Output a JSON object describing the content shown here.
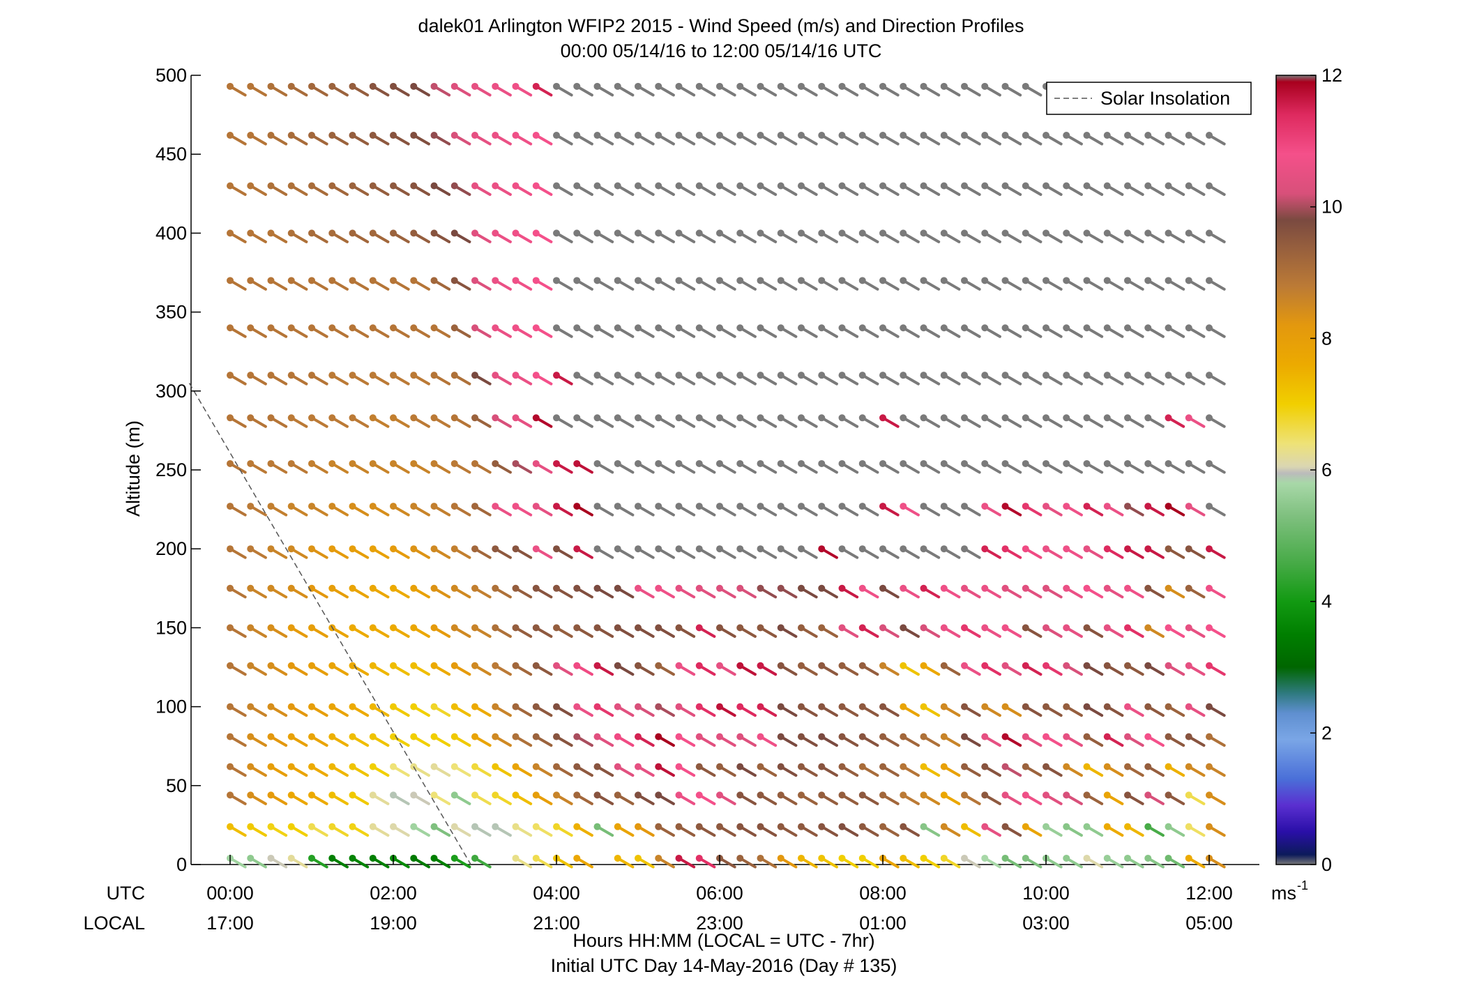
{
  "chart_data": {
    "type": "wind_barb_profile",
    "title": "dalek01 Arlington WFIP2 2015 - Wind Speed (m/s) and Direction Profiles",
    "subtitle": "00:00 05/14/16 to 12:00 05/14/16  UTC",
    "ylabel": "Altitude (m)",
    "xlabel": "Hours HH:MM  (LOCAL = UTC - 7hr)",
    "footer": "Initial UTC Day 14-May-2016 (Day # 135)",
    "utc_label": "UTC",
    "local_label": "LOCAL",
    "xlim_hours": [
      0,
      12
    ],
    "ylim": [
      0,
      500
    ],
    "yticks": [
      0,
      50,
      100,
      150,
      200,
      250,
      300,
      350,
      400,
      450,
      500
    ],
    "xticks_hours": [
      0,
      2,
      4,
      6,
      8,
      10,
      12
    ],
    "xtick_labels_utc": [
      "00:00",
      "02:00",
      "04:00",
      "06:00",
      "08:00",
      "10:00",
      "12:00"
    ],
    "xtick_labels_local": [
      "17:00",
      "19:00",
      "21:00",
      "23:00",
      "01:00",
      "03:00",
      "05:00"
    ],
    "legend": {
      "entries": [
        "Solar Insolation"
      ],
      "location": "top-right"
    },
    "solar_insolation": {
      "x_hours": [
        -0.5,
        2.95
      ],
      "y": [
        305,
        0
      ],
      "style": "dashed",
      "color": "#555555"
    },
    "colorbar": {
      "min": 0,
      "max": 12,
      "ticks": [
        0,
        2,
        4,
        6,
        8,
        10,
        12
      ],
      "unit": "ms",
      "unit_exponent": "-1",
      "stops": [
        [
          0.0,
          "#777777"
        ],
        [
          0.15,
          "#0c1a5a"
        ],
        [
          0.5,
          "#2a0fa8"
        ],
        [
          0.9,
          "#5a2fd0"
        ],
        [
          1.3,
          "#4a6fd8"
        ],
        [
          1.9,
          "#7aa6e6"
        ],
        [
          2.3,
          "#5f8fd0"
        ],
        [
          2.6,
          "#2f7a80"
        ],
        [
          3.0,
          "#006600"
        ],
        [
          3.5,
          "#007f00"
        ],
        [
          4.0,
          "#129a12"
        ],
        [
          4.6,
          "#48ab48"
        ],
        [
          5.3,
          "#7fc07f"
        ],
        [
          5.8,
          "#a8d8a8"
        ],
        [
          5.95,
          "#bbbbbb"
        ],
        [
          6.05,
          "#dad6b2"
        ],
        [
          6.4,
          "#eee277"
        ],
        [
          7.0,
          "#f1cf00"
        ],
        [
          7.6,
          "#ecaa00"
        ],
        [
          8.2,
          "#e3980e"
        ],
        [
          8.8,
          "#bb7a36"
        ],
        [
          9.4,
          "#955e3e"
        ],
        [
          9.8,
          "#7a4a40"
        ],
        [
          10.2,
          "#d8507a"
        ],
        [
          10.8,
          "#f4508a"
        ],
        [
          11.4,
          "#de2a5f"
        ],
        [
          11.9,
          "#a8001e"
        ],
        [
          12.0,
          "#7a7a7a"
        ]
      ]
    },
    "times_hours": [
      0.0,
      0.25,
      0.5,
      0.75,
      1.0,
      1.25,
      1.5,
      1.75,
      2.0,
      2.25,
      2.5,
      2.75,
      3.0,
      3.25,
      3.5,
      3.75,
      4.0,
      4.25,
      4.5,
      4.75,
      5.0,
      5.25,
      5.5,
      5.75,
      6.0,
      6.25,
      6.5,
      6.75,
      7.0,
      7.25,
      7.5,
      7.75,
      8.0,
      8.25,
      8.5,
      8.75,
      9.0,
      9.25,
      9.5,
      9.75,
      10.0,
      10.25,
      10.5,
      10.75,
      11.0,
      11.25,
      11.5,
      11.75,
      12.0
    ],
    "altitudes_m": [
      4,
      24,
      44,
      62,
      81,
      100,
      126,
      150,
      175,
      200,
      227,
      254,
      283,
      310,
      340,
      370,
      400,
      430,
      462,
      493
    ],
    "direction_deg": 240,
    "missing_value": null,
    "speed_rows_ms": [
      [
        5.7,
        5.5,
        6.0,
        6.2,
        4.2,
        3.5,
        3.6,
        3.5,
        3.7,
        3.4,
        3.5,
        4.1,
        4.5,
        null,
        6.3,
        6.6,
        7.2,
        7.7,
        null,
        7.4,
        7.2,
        8.6,
        11.6,
        11.3,
        9.5,
        9.3,
        9.0,
        8.2,
        7.4,
        7.2,
        7.0,
        7.0,
        7.8,
        7.3,
        7.0,
        6.8,
        6.0,
        5.8,
        5.2,
        5.3,
        5.5,
        5.5,
        6.1,
        5.6,
        5.5,
        5.4,
        5.1,
        7.6,
        8.4
      ],
      [
        7.3,
        7.1,
        6.9,
        7.0,
        6.6,
        6.8,
        6.9,
        6.2,
        6.1,
        5.7,
        5.3,
        6.1,
        5.9,
        5.9,
        6.3,
        6.5,
        6.8,
        7.5,
        5.2,
        7.8,
        8.2,
        9.3,
        9.4,
        9.5,
        9.5,
        9.6,
        9.6,
        9.5,
        9.5,
        9.6,
        9.7,
        9.5,
        9.3,
        9.6,
        5.4,
        8.5,
        7.3,
        10.5,
        9.6,
        7.8,
        5.6,
        5.4,
        5.5,
        7.6,
        7.4,
        4.6,
        5.5,
        6.5,
        8.4
      ],
      [
        8.9,
        8.4,
        8.1,
        7.7,
        7.6,
        7.3,
        7.1,
        6.2,
        5.9,
        6.0,
        6.4,
        5.5,
        6.6,
        6.8,
        7.3,
        8.0,
        8.6,
        9.2,
        9.6,
        9.3,
        9.7,
        9.8,
        10.6,
        10.8,
        10.4,
        9.6,
        9.5,
        9.4,
        9.3,
        9.4,
        9.4,
        9.5,
        9.2,
        8.8,
        8.5,
        7.7,
        8.9,
        9.5,
        10.5,
        10.7,
        10.4,
        10.2,
        9.3,
        7.8,
        9.6,
        10.2,
        9.5,
        6.6,
        8.4
      ],
      [
        8.9,
        8.4,
        8.0,
        7.8,
        7.6,
        7.4,
        7.2,
        7.0,
        6.4,
        6.3,
        6.2,
        6.4,
        6.7,
        7.2,
        7.8,
        8.6,
        9.2,
        9.5,
        9.6,
        10.4,
        10.5,
        11.7,
        10.8,
        9.5,
        9.4,
        9.8,
        9.3,
        9.7,
        9.5,
        9.6,
        9.4,
        9.1,
        9.3,
        8.9,
        7.3,
        7.9,
        9.4,
        9.6,
        10.1,
        9.3,
        9.6,
        8.5,
        7.4,
        8.4,
        9.2,
        9.4,
        7.5,
        8.5,
        8.6
      ],
      [
        8.9,
        8.4,
        8.2,
        7.9,
        7.8,
        7.5,
        7.3,
        7.2,
        7.0,
        7.0,
        7.0,
        7.1,
        7.8,
        8.5,
        9.0,
        9.3,
        9.6,
        10.0,
        10.4,
        10.9,
        11.5,
        11.9,
        10.8,
        10.4,
        10.4,
        10.3,
        10.7,
        9.8,
        9.7,
        9.8,
        9.6,
        9.6,
        9.4,
        9.2,
        9.0,
        8.6,
        9.8,
        10.5,
        11.8,
        10.5,
        10.8,
        10.5,
        9.4,
        11.5,
        10.3,
        10.8,
        9.5,
        9.6,
        9.0
      ],
      [
        8.9,
        8.6,
        8.4,
        8.2,
        8.0,
        7.8,
        7.6,
        7.4,
        7.1,
        7.0,
        6.8,
        7.3,
        7.6,
        8.6,
        9.2,
        9.5,
        9.7,
        10.6,
        11.2,
        10.4,
        10.2,
        10.0,
        10.4,
        11.3,
        11.7,
        11.4,
        11.5,
        9.8,
        9.6,
        9.6,
        9.5,
        9.5,
        9.6,
        7.8,
        7.2,
        8.5,
        9.6,
        8.5,
        8.4,
        9.6,
        9.5,
        9.4,
        9.8,
        9.6,
        10.6,
        9.5,
        9.3,
        10.5,
        9.8
      ],
      [
        8.9,
        8.6,
        8.4,
        8.2,
        8.0,
        7.8,
        7.6,
        7.4,
        7.3,
        7.3,
        7.6,
        8.1,
        8.5,
        8.8,
        9.2,
        9.5,
        10.4,
        10.9,
        11.6,
        9.8,
        9.6,
        9.3,
        10.6,
        11.4,
        10.5,
        11.7,
        11.6,
        9.6,
        9.4,
        9.5,
        9.4,
        9.4,
        8.6,
        7.2,
        7.7,
        9.3,
        10.6,
        11.3,
        10.4,
        11.5,
        11.2,
        10.2,
        9.8,
        9.6,
        9.5,
        9.8,
        10.3,
        10.5,
        11.2
      ],
      [
        8.9,
        8.6,
        8.4,
        8.1,
        8.0,
        7.8,
        7.6,
        7.6,
        7.6,
        7.7,
        8.1,
        8.5,
        8.6,
        9.0,
        9.4,
        9.5,
        9.4,
        9.5,
        9.6,
        9.7,
        9.7,
        9.7,
        9.6,
        11.5,
        9.6,
        9.5,
        9.5,
        9.8,
        9.4,
        9.3,
        10.4,
        11.5,
        10.2,
        9.8,
        10.2,
        10.6,
        11.2,
        10.6,
        10.7,
        9.6,
        10.3,
        10.5,
        9.6,
        10.5,
        11.3,
        8.5,
        10.8,
        10.5,
        10.8
      ],
      [
        8.9,
        8.6,
        8.5,
        8.4,
        8.2,
        8.0,
        7.8,
        7.7,
        7.6,
        7.9,
        8.3,
        8.5,
        8.7,
        9.0,
        9.4,
        9.6,
        9.6,
        9.7,
        9.8,
        9.8,
        10.6,
        10.7,
        10.5,
        10.4,
        10.3,
        10.2,
        9.9,
        9.9,
        9.8,
        9.8,
        11.6,
        10.7,
        9.8,
        10.6,
        11.5,
        10.7,
        10.5,
        10.6,
        10.4,
        10.4,
        10.3,
        10.6,
        10.8,
        10.5,
        10.7,
        9.6,
        8.4,
        9.3,
        10.7
      ],
      [
        8.9,
        8.8,
        8.6,
        8.5,
        8.3,
        8.1,
        8.0,
        7.9,
        8.1,
        8.3,
        8.5,
        8.7,
        9.2,
        9.5,
        9.6,
        10.6,
        9.7,
        11.6,
        12.0,
        12.0,
        12.0,
        12.0,
        12.0,
        12.0,
        12.0,
        12.0,
        12.0,
        12.0,
        12.0,
        11.8,
        12.0,
        12.0,
        12.0,
        12.0,
        12.0,
        12.0,
        12.0,
        11.5,
        11.3,
        10.9,
        10.6,
        10.7,
        10.5,
        11.4,
        11.6,
        11.6,
        9.5,
        9.6,
        11.6
      ],
      [
        8.9,
        8.8,
        8.7,
        8.6,
        8.6,
        8.5,
        8.4,
        8.4,
        8.5,
        8.6,
        8.7,
        8.9,
        9.2,
        10.6,
        10.7,
        10.5,
        11.6,
        11.9,
        12.0,
        12.0,
        12.0,
        12.0,
        12.0,
        12.0,
        12.0,
        12.0,
        12.0,
        12.0,
        12.0,
        12.0,
        12.0,
        12.0,
        11.6,
        10.7,
        12.0,
        12.0,
        12.0,
        10.6,
        11.8,
        11.2,
        10.5,
        10.7,
        11.5,
        10.6,
        9.9,
        11.6,
        11.9,
        10.5,
        12.0
      ],
      [
        8.9,
        8.8,
        8.8,
        8.8,
        8.7,
        8.6,
        8.6,
        8.6,
        8.6,
        8.6,
        8.7,
        8.8,
        8.9,
        9.4,
        10.0,
        10.5,
        11.6,
        11.7,
        12.0,
        12.0,
        12.0,
        12.0,
        12.0,
        12.0,
        12.0,
        12.0,
        12.0,
        12.0,
        12.0,
        12.0,
        12.0,
        12.0,
        12.0,
        12.0,
        12.0,
        12.0,
        12.0,
        12.0,
        12.0,
        12.0,
        12.0,
        12.0,
        12.0,
        12.0,
        12.0,
        12.0,
        12.0,
        12.0,
        12.0
      ],
      [
        8.9,
        8.9,
        8.9,
        8.8,
        8.8,
        8.8,
        8.8,
        8.7,
        8.7,
        8.8,
        8.8,
        8.9,
        9.3,
        10.2,
        10.5,
        11.8,
        12.0,
        12.0,
        12.0,
        12.0,
        12.0,
        12.0,
        12.0,
        12.0,
        12.0,
        12.0,
        12.0,
        12.0,
        12.0,
        12.0,
        12.0,
        12.0,
        11.6,
        12.0,
        12.0,
        12.0,
        12.0,
        12.0,
        12.0,
        12.0,
        12.0,
        12.0,
        12.0,
        12.0,
        12.0,
        12.0,
        11.5,
        10.6,
        12.0
      ],
      [
        8.9,
        8.9,
        8.9,
        8.9,
        8.9,
        8.8,
        8.8,
        8.8,
        8.8,
        8.8,
        8.9,
        9.0,
        9.8,
        10.5,
        10.6,
        10.8,
        11.6,
        12.0,
        12.0,
        12.0,
        12.0,
        12.0,
        12.0,
        12.0,
        12.0,
        12.0,
        12.0,
        12.0,
        12.0,
        12.0,
        12.0,
        12.0,
        12.0,
        12.0,
        12.0,
        12.0,
        12.0,
        12.0,
        12.0,
        12.0,
        12.0,
        12.0,
        12.0,
        12.0,
        12.0,
        12.0,
        12.0,
        12.0,
        12.0
      ],
      [
        8.9,
        8.9,
        8.9,
        8.9,
        8.9,
        8.9,
        8.9,
        8.9,
        8.9,
        8.9,
        8.9,
        9.3,
        10.2,
        10.6,
        10.7,
        10.8,
        12.0,
        12.0,
        12.0,
        12.0,
        12.0,
        12.0,
        12.0,
        12.0,
        12.0,
        12.0,
        12.0,
        12.0,
        12.0,
        12.0,
        12.0,
        12.0,
        12.0,
        12.0,
        12.0,
        12.0,
        12.0,
        12.0,
        12.0,
        12.0,
        12.0,
        12.0,
        12.0,
        12.0,
        12.0,
        12.0,
        12.0,
        12.0,
        12.0
      ],
      [
        8.9,
        8.9,
        8.9,
        8.9,
        8.9,
        8.9,
        8.9,
        8.9,
        8.9,
        8.9,
        9.2,
        9.6,
        10.3,
        10.6,
        10.7,
        10.8,
        12.0,
        12.0,
        12.0,
        12.0,
        12.0,
        12.0,
        12.0,
        12.0,
        12.0,
        12.0,
        12.0,
        12.0,
        12.0,
        12.0,
        12.0,
        12.0,
        12.0,
        12.0,
        12.0,
        12.0,
        12.0,
        12.0,
        12.0,
        12.0,
        12.0,
        12.0,
        12.0,
        12.0,
        12.0,
        12.0,
        12.0,
        12.0,
        12.0
      ],
      [
        8.9,
        8.9,
        8.9,
        9.0,
        9.1,
        9.1,
        9.2,
        9.2,
        9.3,
        9.4,
        9.6,
        9.8,
        10.4,
        10.6,
        10.7,
        10.8,
        12.0,
        12.0,
        12.0,
        12.0,
        12.0,
        12.0,
        12.0,
        12.0,
        12.0,
        12.0,
        12.0,
        12.0,
        12.0,
        12.0,
        12.0,
        12.0,
        12.0,
        12.0,
        12.0,
        12.0,
        12.0,
        12.0,
        12.0,
        12.0,
        12.0,
        12.0,
        12.0,
        12.0,
        12.0,
        12.0,
        12.0,
        12.0,
        12.0
      ],
      [
        8.9,
        8.9,
        9.0,
        9.0,
        9.1,
        9.2,
        9.3,
        9.4,
        9.5,
        9.6,
        9.8,
        9.9,
        10.5,
        10.6,
        10.7,
        10.8,
        12.0,
        12.0,
        12.0,
        12.0,
        12.0,
        12.0,
        12.0,
        12.0,
        12.0,
        12.0,
        12.0,
        12.0,
        12.0,
        12.0,
        12.0,
        12.0,
        12.0,
        12.0,
        12.0,
        12.0,
        12.0,
        12.0,
        12.0,
        12.0,
        12.0,
        12.0,
        12.0,
        12.0,
        12.0,
        12.0,
        12.0,
        12.0,
        12.0
      ],
      [
        8.9,
        8.9,
        9.0,
        9.1,
        9.2,
        9.3,
        9.4,
        9.5,
        9.6,
        9.7,
        9.9,
        10.2,
        10.5,
        10.6,
        10.7,
        10.8,
        12.0,
        12.0,
        12.0,
        12.0,
        12.0,
        12.0,
        12.0,
        12.0,
        12.0,
        12.0,
        12.0,
        12.0,
        12.0,
        12.0,
        12.0,
        12.0,
        12.0,
        12.0,
        12.0,
        12.0,
        12.0,
        12.0,
        12.0,
        12.0,
        12.0,
        12.0,
        12.0,
        12.0,
        12.0,
        12.0,
        12.0,
        12.0,
        12.0
      ],
      [
        8.9,
        8.9,
        9.0,
        9.1,
        9.2,
        9.3,
        9.4,
        9.6,
        9.7,
        9.8,
        10.1,
        10.3,
        10.5,
        10.6,
        10.7,
        11.5,
        12.0,
        12.0,
        12.0,
        12.0,
        12.0,
        12.0,
        12.0,
        12.0,
        12.0,
        12.0,
        12.0,
        12.0,
        12.0,
        12.0,
        12.0,
        12.0,
        12.0,
        12.0,
        12.0,
        12.0,
        12.0,
        12.0,
        12.0,
        12.0,
        12.0,
        12.0,
        12.0,
        12.0,
        12.0,
        12.0,
        12.0,
        12.0,
        12.0
      ]
    ]
  }
}
